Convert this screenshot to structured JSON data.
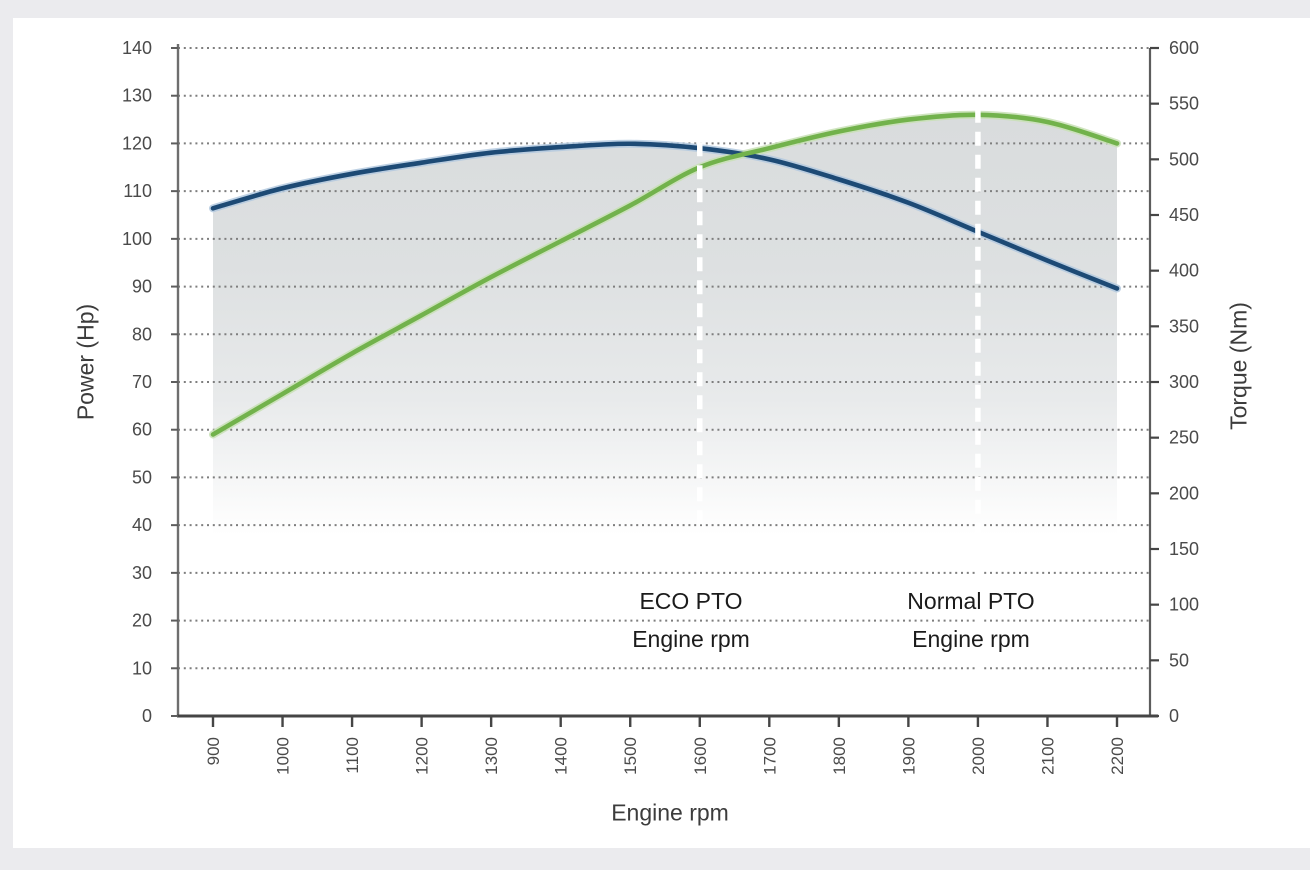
{
  "page": {
    "background_color": "#ebebee",
    "card_color": "#ffffff"
  },
  "chart_data": {
    "type": "line",
    "x_label": "Engine rpm",
    "x": [
      900,
      1000,
      1100,
      1200,
      1300,
      1400,
      1500,
      1600,
      1700,
      1800,
      1900,
      2000,
      2100,
      2200
    ],
    "x_tick_labels": [
      "900",
      "1000",
      "1100",
      "1200",
      "1300",
      "1400",
      "1500",
      "1600",
      "1700",
      "1800",
      "1900",
      "2000",
      "2100",
      "2200"
    ],
    "series": [
      {
        "name": "Torque (Nm)",
        "axis": "right",
        "color": "#1d4a75",
        "halo_color": "#b3c9df",
        "values": [
          456,
          474,
          487,
          497,
          506,
          511,
          514,
          510,
          500,
          482,
          461,
          435,
          409,
          384
        ]
      },
      {
        "name": "Power (Hp)",
        "axis": "left",
        "color": "#72b24c",
        "halo_color": "#c8e0b5",
        "values": [
          59,
          67.5,
          76,
          84,
          92,
          99.5,
          107,
          115,
          119,
          122.5,
          125,
          126,
          124.5,
          120
        ]
      }
    ],
    "left_axis": {
      "label": "Power (Hp)",
      "min": 0,
      "max": 140,
      "step": 10,
      "ticks": [
        0,
        10,
        20,
        30,
        40,
        50,
        60,
        70,
        80,
        90,
        100,
        110,
        120,
        130,
        140
      ]
    },
    "right_axis": {
      "label": "Torque (Nm)",
      "min": 0,
      "max": 600,
      "step": 50,
      "ticks": [
        0,
        50,
        100,
        150,
        200,
        250,
        300,
        350,
        400,
        450,
        500,
        550,
        600
      ]
    },
    "annotations": [
      {
        "rpm": 1600,
        "line1": "ECO PTO",
        "line2": "Engine rpm"
      },
      {
        "rpm": 2000,
        "line1": "Normal PTO",
        "line2": "Engine rpm"
      }
    ],
    "grid": {
      "horizontal": "dotted",
      "vertical": "none",
      "color": "#7e7e7e"
    },
    "annotation_line_color": "#ffffff",
    "fill": {
      "style": "area under curves",
      "top_color": "#d7dadb",
      "bottom_color": "#ffffff"
    },
    "legend": "none"
  }
}
